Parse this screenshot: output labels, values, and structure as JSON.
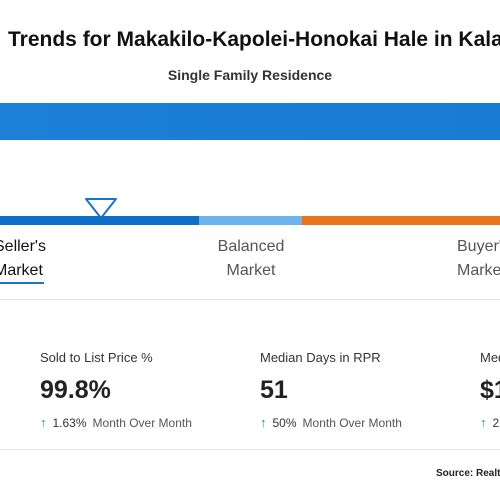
{
  "header": {
    "title": "Trends for Makakilo-Kapolei-Honokai Hale in Kalae",
    "subtitle": "Single Family Residence"
  },
  "market_scale": {
    "segments": [
      {
        "name": "Seller's Market",
        "line1": "Seller's",
        "line2": "Market",
        "color": "#0d6fc8"
      },
      {
        "name": "Balanced Market",
        "line1": "Balanced",
        "line2": "Market",
        "color": "#6bb4ee"
      },
      {
        "name": "Buyer's Market",
        "line1": "Buyer'",
        "line2": "Marke",
        "color": "#e8741e"
      }
    ],
    "selected": "Seller's Market"
  },
  "stats": [
    {
      "label": "Sold to List Price %",
      "value": "99.8%",
      "change_pct": "1.63%",
      "change_label": "Month Over Month",
      "direction": "up"
    },
    {
      "label": "Median Days in RPR",
      "value": "51",
      "change_pct": "50%",
      "change_label": "Month Over Month",
      "direction": "up"
    },
    {
      "label": "Med",
      "value": "$1",
      "change_pct": "2",
      "change_label": "",
      "direction": "up"
    }
  ],
  "footer": {
    "source": "Source: Realto"
  },
  "colors": {
    "accent": "#1a7bd4",
    "up_arrow": "#1aa35a"
  }
}
